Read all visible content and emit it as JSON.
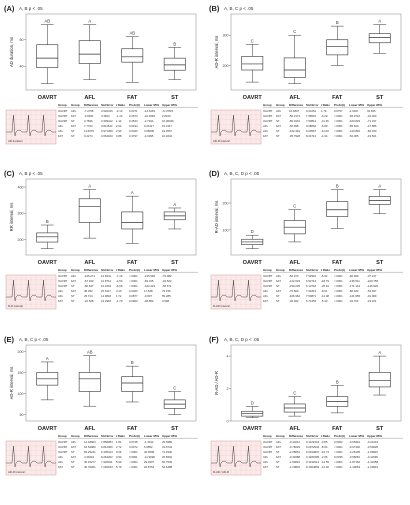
{
  "chart_data": [
    {
      "panel": "(A)",
      "type": "box",
      "sig_note": "A, B p < .05",
      "ylabel": "AD duration, ms",
      "categories": [
        "OAVRT",
        "AFL",
        "FAT",
        "ST"
      ],
      "group_letters": [
        "AB",
        "A",
        "AB",
        "B"
      ],
      "inset_label": "AD duration",
      "table": {
        "headers": [
          "Group",
          "Group",
          "Difference",
          "Std Error",
          "t Ratio",
          "Prob>|t|",
          "Lower 95%",
          "Upper 95%"
        ],
        "rows": [
          [
            "OAVRT",
            "AFL",
            "-7.2768",
            "3.520415",
            "-2.10",
            "0.0371",
            "-14.6103",
            "-0.17833"
          ],
          [
            "OAVRT",
            "FAT",
            "-3.8181",
            "3.3604",
            "-1.14",
            "0.2574",
            "-10.4584",
            "2.8223"
          ],
          [
            "OAVRT",
            "ST",
            "3.7846",
            "3.309412",
            "1.14",
            "0.2544",
            "-2.7914",
            "10.36046"
          ],
          [
            "AFL",
            "FAT",
            "7.7763",
            "3.811523",
            "2.04",
            "0.0434",
            "0.24117",
            "15.3117"
          ],
          [
            "AFL",
            "ST",
            "11.5079",
            "3.971459",
            "2.90",
            "0.0043",
            "3.66006",
            "19.3557"
          ],
          [
            "FAT",
            "ST",
            "3.2274",
            "3.664043",
            "0.88",
            "0.3797",
            "-4.0095",
            "10.4642"
          ]
        ]
      },
      "boxes": [
        [
          27,
          39,
          46,
          56,
          71
        ],
        [
          30,
          42,
          49,
          59,
          71
        ],
        [
          28,
          43,
          47,
          53,
          62
        ],
        [
          30,
          37,
          41,
          46,
          54
        ]
      ]
    },
    {
      "panel": "(B)",
      "type": "box",
      "sig_note": "A, B, C p < .05",
      "ylabel": "AD-R interval, ms",
      "categories": [
        "OAVRT",
        "AFL",
        "FAT",
        "ST"
      ],
      "group_letters": [
        "C",
        "C",
        "B",
        "A"
      ],
      "inset_label": "AD-R interval",
      "table": {
        "headers": [
          "Group",
          "Group",
          "Difference",
          "Std Error",
          "t Ratio",
          "Prob>|t|",
          "Lower 95%",
          "Upper 95%"
        ],
        "rows": [
          [
            "OAVRT",
            "AFL",
            "16.4807",
            "9.21051",
            "1.79",
            "0.0757",
            "-1.6937",
            "34.655"
          ],
          [
            "OAVRT",
            "FAT",
            "-50.2173",
            "7.98516",
            "-6.29",
            "<.0001",
            "-65.9716",
            "-34.463"
          ],
          [
            "OAVRT",
            "ST",
            "-86.0101",
            "7.50812",
            "-11.46",
            "<.0001",
            "-100.823",
            "-71.197"
          ],
          [
            "AFL",
            "FAT",
            "-66.698",
            "9.68652",
            "-6.89",
            "<.0001",
            "-85.810",
            "-47.586"
          ],
          [
            "AFL",
            "ST",
            "-102.491",
            "9.29567",
            "-11.03",
            "<.0001",
            "-120.832",
            "-84.150"
          ],
          [
            "FAT",
            "ST",
            "-35.7928",
            "8.24713",
            "-4.34",
            "<.0001",
            "-52.065",
            "-19.521"
          ]
        ]
      },
      "boxes": [
        [
          145,
          185,
          205,
          230,
          270
        ],
        [
          140,
          160,
          185,
          225,
          300
        ],
        [
          200,
          235,
          262,
          285,
          330
        ],
        [
          240,
          275,
          292,
          305,
          335
        ]
      ]
    },
    {
      "panel": "(C)",
      "type": "box",
      "sig_note": "A, B p < .05",
      "ylabel": "RR interval, ms",
      "categories": [
        "OAVRT",
        "AFL",
        "FAT",
        "ST"
      ],
      "group_letters": [
        "B",
        "A",
        "A",
        "A"
      ],
      "inset_label": "R-R interval",
      "table": {
        "headers": [
          "Group",
          "Group",
          "Difference",
          "Std Error",
          "t Ratio",
          "Prob>|t|",
          "Lower 95%",
          "Upper 95%"
        ],
        "rows": [
          [
            "OAVRT",
            "AFL",
            "-106.271",
            "14.8441",
            "-7.16",
            "<.0001",
            "-135.560",
            "-76.982"
          ],
          [
            "OAVRT",
            "FAT",
            "-57.919",
            "12.8712",
            "-4.50",
            "<.0001",
            "-83.315",
            "-32.523"
          ],
          [
            "OAVRT",
            "ST",
            "-80.547",
            "12.1004",
            "-6.66",
            "<.0001",
            "-104.423",
            "-56.671"
          ],
          [
            "AFL",
            "FAT",
            "48.352",
            "15.6117",
            "3.10",
            "0.0023",
            "17.548",
            "79.156"
          ],
          [
            "AFL",
            "ST",
            "25.724",
            "14.9818",
            "1.72",
            "0.0877",
            "-3.837",
            "55.285"
          ],
          [
            "FAT",
            "ST",
            "-22.628",
            "13.2918",
            "-1.70",
            "0.0903",
            "-48.854",
            "3.598"
          ]
        ]
      },
      "boxes": [
        [
          165,
          190,
          210,
          225,
          255
        ],
        [
          205,
          265,
          325,
          355,
          390
        ],
        [
          185,
          240,
          265,
          305,
          365
        ],
        [
          240,
          275,
          290,
          305,
          320
        ]
      ]
    },
    {
      "panel": "(D)",
      "type": "box",
      "sig_note": "A, B, C, D p < .05",
      "ylabel": "R-AD interval, ms",
      "categories": [
        "OAVRT",
        "AFL",
        "FAT",
        "ST"
      ],
      "group_letters": [
        "D",
        "C",
        "B",
        "A"
      ],
      "inset_label": "R-AD interval",
      "table": {
        "headers": [
          "Group",
          "Group",
          "Difference",
          "Std Error",
          "t Ratio",
          "Prob>|t|",
          "Lower 95%",
          "Upper 95%"
        ],
        "rows": [
          [
            "OAVRT",
            "AFL",
            "-52.073",
            "7.52916",
            "-6.92",
            "<.0001",
            "-66.929",
            "-37.217"
          ],
          [
            "OAVRT",
            "FAT",
            "-122.633",
            "6.52713",
            "-18.79",
            "<.0001",
            "-135.511",
            "-109.755"
          ],
          [
            "OAVRT",
            "ST",
            "-159.035",
            "6.13718",
            "-25.91",
            "<.0001",
            "-171.144",
            "-146.926"
          ],
          [
            "AFL",
            "FAT",
            "-70.560",
            "7.91813",
            "-8.91",
            "<.0001",
            "-86.183",
            "-54.937"
          ],
          [
            "AFL",
            "ST",
            "-106.962",
            "7.59871",
            "-14.08",
            "<.0001",
            "-121.955",
            "-91.969"
          ],
          [
            "FAT",
            "ST",
            "-36.402",
            "6.74153",
            "-5.40",
            "<.0001",
            "-49.703",
            "-23.101"
          ]
        ]
      },
      "boxes": [
        [
          30,
          45,
          55,
          65,
          80
        ],
        [
          55,
          85,
          110,
          135,
          175
        ],
        [
          105,
          150,
          175,
          205,
          250
        ],
        [
          160,
          195,
          210,
          225,
          250
        ]
      ]
    },
    {
      "panel": "(E)",
      "type": "box",
      "sig_note": "A, B, C p < .05",
      "ylabel": "AD-R interval, ms",
      "categories": [
        "OAVRT",
        "AFL",
        "FAT",
        "ST"
      ],
      "group_letters": [
        "A",
        "AB",
        "B",
        "C"
      ],
      "inset_label": "AD-R interval",
      "table": {
        "headers": [
          "Group",
          "Group",
          "Difference",
          "Std Error",
          "t Ratio",
          "Prob>|t|",
          "Lower 95%",
          "Upper 95%"
        ],
        "rows": [
          [
            "OAVRT",
            "AFL",
            "14.18964",
            "7.858283",
            "1.81",
            "0.0728",
            "-1.3193",
            "29.6986"
          ],
          [
            "OAVRT",
            "FAT",
            "18.52980",
            "6.812366",
            "2.72",
            "0.0072",
            "5.0852",
            "31.9744"
          ],
          [
            "OAVRT",
            "ST",
            "59.29241",
            "6.405414",
            "9.26",
            "<.0001",
            "46.6508",
            "71.9340"
          ],
          [
            "AFL",
            "FAT",
            "4.34016",
            "8.264262",
            "0.53",
            "0.6001",
            "-11.9699",
            "20.6502"
          ],
          [
            "AFL",
            "ST",
            "45.10277",
            "7.930911",
            "5.69",
            "<.0001",
            "29.4507",
            "60.7549"
          ],
          [
            "FAT",
            "ST",
            "40.76261",
            "7.036184",
            "5.79",
            "<.0001",
            "26.8764",
            "54.6488"
          ]
        ]
      },
      "boxes": [
        [
          85,
          120,
          135,
          150,
          175
        ],
        [
          70,
          105,
          135,
          150,
          190
        ],
        [
          80,
          105,
          125,
          140,
          165
        ],
        [
          50,
          65,
          75,
          85,
          105
        ]
      ]
    },
    {
      "panel": "(F)",
      "type": "box",
      "sig_note": "A, B, C, D p < .05",
      "ylabel": "R-AD / AD-R",
      "categories": [
        "OAVRT",
        "AFL",
        "FAT",
        "ST"
      ],
      "group_letters": [
        "D",
        "C",
        "B",
        "A"
      ],
      "inset_label": "R-AD / AD-R",
      "table": {
        "headers": [
          "Group",
          "Group",
          "Difference",
          "Std Error",
          "t Ratio",
          "Prob>|t|",
          "Lower 95%",
          "Upper 95%"
        ],
        "rows": [
          [
            "OAVRT",
            "AFL",
            "-0.43241",
            "0.1122334",
            "-3.85",
            "0.0002",
            "-0.65391",
            "-0.21091"
          ],
          [
            "OAVRT",
            "FAT",
            "-0.78229",
            "0.0972934",
            "-8.04",
            "<.0001",
            "-0.97430",
            "-0.59028"
          ],
          [
            "OAVRT",
            "ST",
            "-2.08051",
            "0.0914807",
            "-22.74",
            "<.0001",
            "-2.26105",
            "-1.89997"
          ],
          [
            "AFL",
            "FAT",
            "-0.34988",
            "0.1180305",
            "-2.96",
            "0.0035",
            "-0.58281",
            "-0.11695"
          ],
          [
            "AFL",
            "ST",
            "-1.64810",
            "0.1132614",
            "-14.55",
            "<.0001",
            "-1.87162",
            "-1.42458"
          ],
          [
            "FAT",
            "ST",
            "-1.29822",
            "0.1004866",
            "-12.92",
            "<.0001",
            "-1.49653",
            "-1.09991"
          ]
        ]
      },
      "boxes": [
        [
          0.2,
          0.3,
          0.45,
          0.6,
          0.9
        ],
        [
          0.3,
          0.55,
          0.8,
          1.05,
          1.5
        ],
        [
          0.5,
          0.9,
          1.2,
          1.5,
          2.2
        ],
        [
          1.6,
          2.1,
          2.5,
          3.0,
          4.0
        ]
      ]
    }
  ]
}
